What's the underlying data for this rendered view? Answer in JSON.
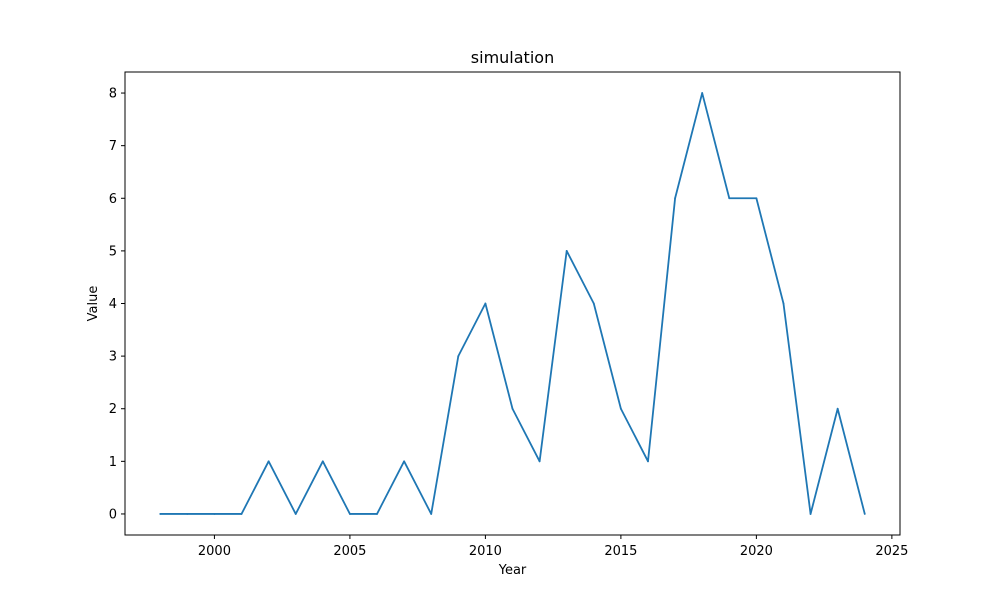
{
  "chart_data": {
    "type": "line",
    "title": "simulation",
    "xlabel": "Year",
    "ylabel": "Value",
    "xlim": [
      1996.7,
      2025.3
    ],
    "ylim": [
      -0.4,
      8.4
    ],
    "xticks": [
      2000,
      2005,
      2010,
      2015,
      2020,
      2025
    ],
    "yticks": [
      0,
      1,
      2,
      3,
      4,
      5,
      6,
      7,
      8
    ],
    "grid": false,
    "x": [
      1998,
      1999,
      2000,
      2001,
      2002,
      2003,
      2004,
      2005,
      2006,
      2007,
      2008,
      2009,
      2010,
      2011,
      2012,
      2013,
      2014,
      2015,
      2016,
      2017,
      2018,
      2019,
      2020,
      2021,
      2022,
      2023,
      2024
    ],
    "series": [
      {
        "color": "#1f77b4",
        "values": [
          0,
          0,
          0,
          0,
          1,
          0,
          1,
          0,
          0,
          1,
          0,
          3,
          4,
          2,
          1,
          5,
          4,
          2,
          1,
          6,
          8,
          6,
          6,
          4,
          0,
          2,
          0
        ]
      }
    ]
  }
}
